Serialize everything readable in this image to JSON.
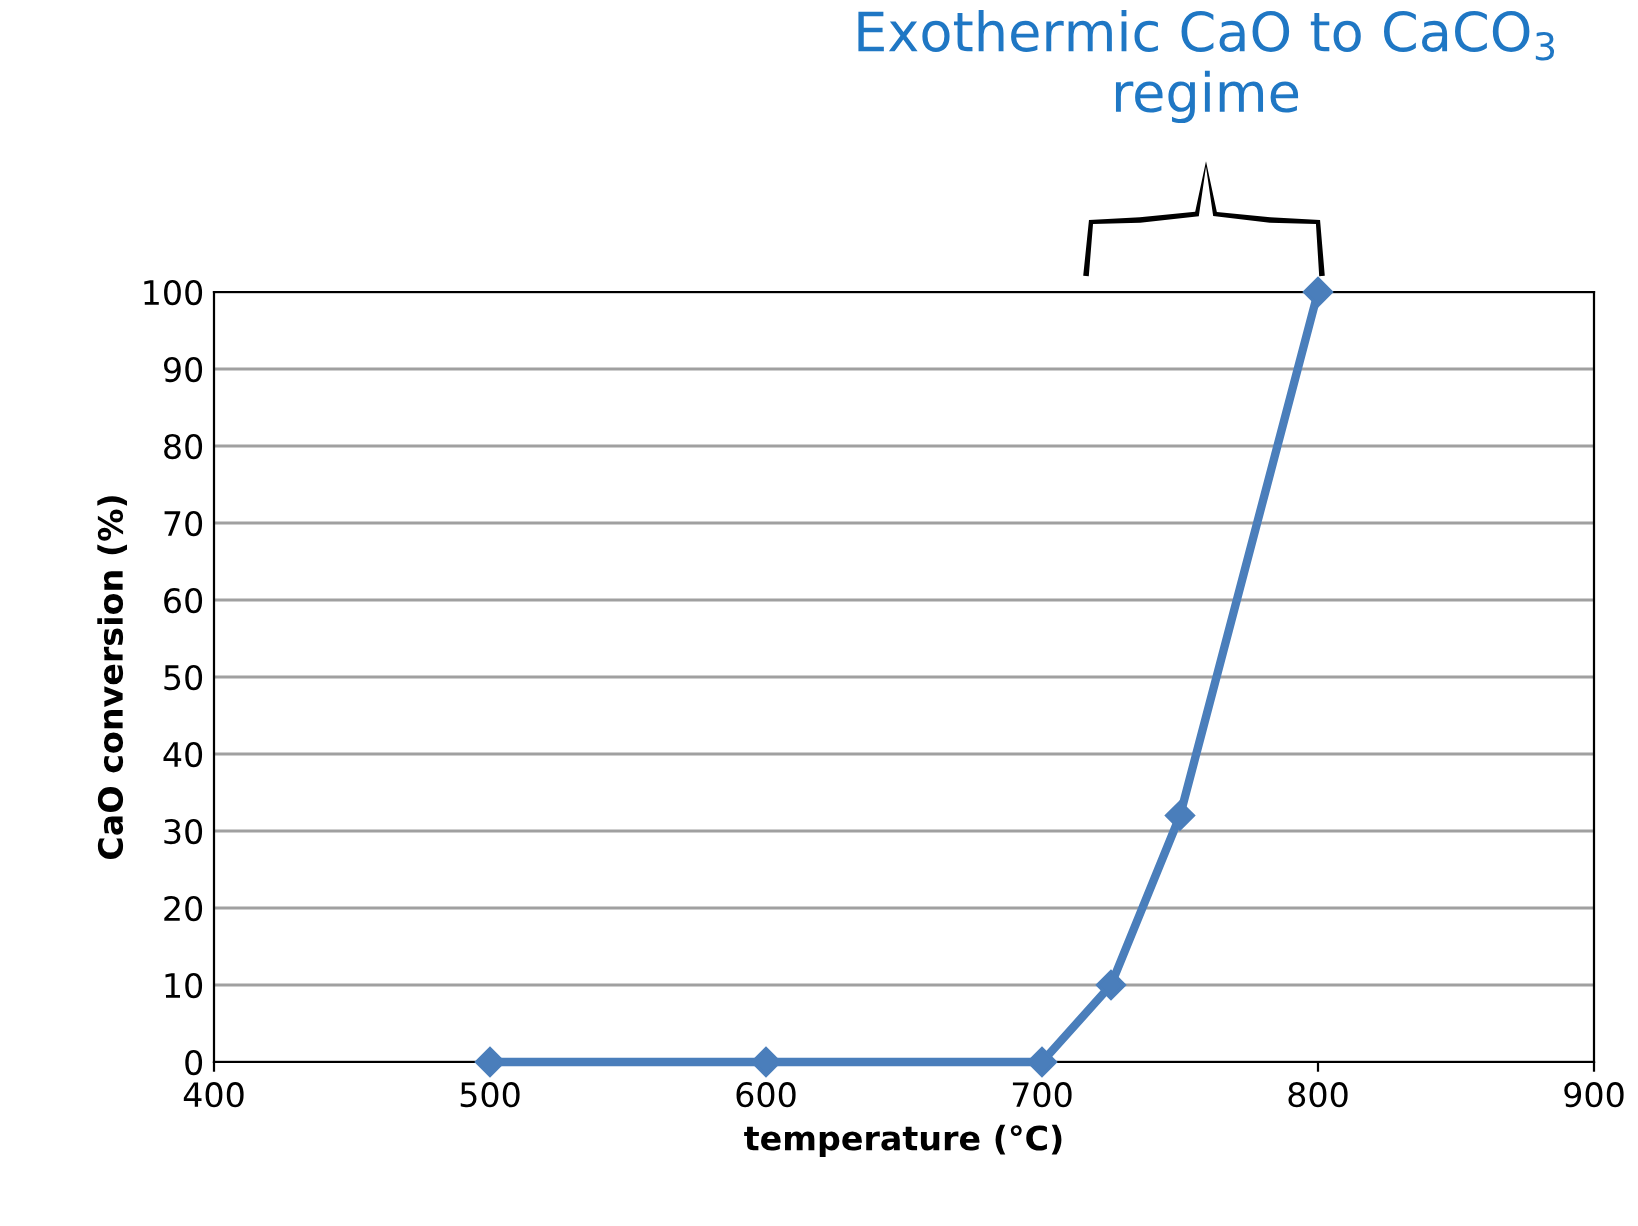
{
  "chart_data": {
    "type": "line",
    "xlabel": "temperature (°C)",
    "ylabel": "CaO conversion (%)",
    "x": [
      500,
      600,
      700,
      725,
      750,
      800
    ],
    "series": [
      {
        "color": "#4a7ebb",
        "values": [
          0,
          0,
          0,
          10,
          32,
          100
        ]
      }
    ],
    "xlim": [
      400,
      900
    ],
    "xticks": [
      400,
      500,
      600,
      700,
      800,
      900
    ],
    "ylim": [
      0,
      100
    ],
    "yticks": [
      0,
      10,
      20,
      30,
      40,
      50,
      60,
      70,
      80,
      90,
      100
    ],
    "grid": "y",
    "marker": "diamond",
    "line_style": "solid",
    "legend": false,
    "annotations": [
      "Exothermic CaO to CaCO$_{3}$ regime"
    ]
  }
}
